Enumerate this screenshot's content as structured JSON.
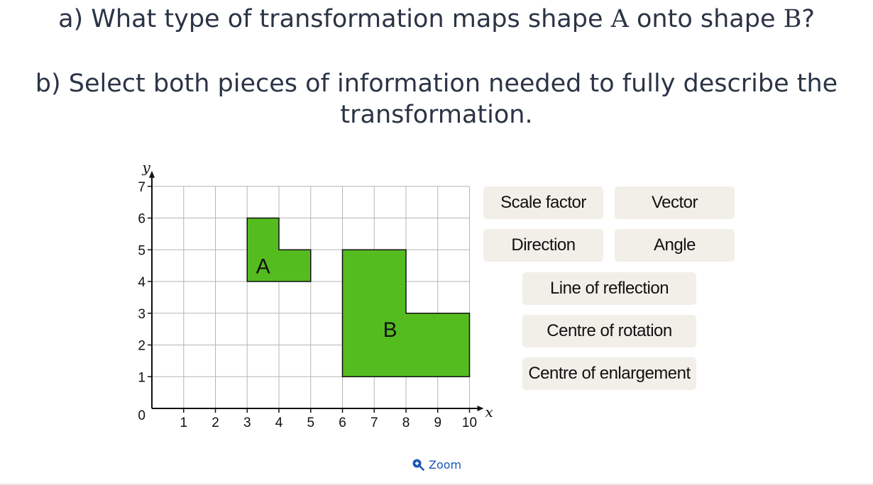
{
  "question_a": {
    "prefix": "a) What type of transformation maps shape ",
    "shape1": "A",
    "middle": " onto shape ",
    "shape2": "B",
    "suffix": "?"
  },
  "question_b": {
    "line1": "b) Select both pieces of information needed to fully describe the",
    "line2": "transformation."
  },
  "graph": {
    "x_axis_label": "x",
    "y_axis_label": "y",
    "origin_label": "0",
    "x_ticks": [
      "1",
      "2",
      "3",
      "4",
      "5",
      "6",
      "7",
      "8",
      "9",
      "10"
    ],
    "y_ticks": [
      "1",
      "2",
      "3",
      "4",
      "5",
      "6",
      "7"
    ],
    "grid_color": "#b5b5b5",
    "shape_fill": "#55bc1f",
    "shape_a": {
      "label": "A",
      "vertices": [
        [
          3,
          4
        ],
        [
          3,
          6
        ],
        [
          4,
          6
        ],
        [
          4,
          5
        ],
        [
          5,
          5
        ],
        [
          5,
          4
        ]
      ],
      "label_pos": [
        3.5,
        4.5
      ]
    },
    "shape_b": {
      "label": "B",
      "vertices": [
        [
          6,
          1
        ],
        [
          6,
          5
        ],
        [
          8,
          5
        ],
        [
          8,
          3
        ],
        [
          10,
          3
        ],
        [
          10,
          1
        ]
      ],
      "label_pos": [
        7.5,
        2.5
      ]
    }
  },
  "options": {
    "scale_factor": "Scale factor",
    "vector": "Vector",
    "direction": "Direction",
    "angle": "Angle",
    "line_of_reflection": "Line of reflection",
    "centre_of_rotation": "Centre of rotation",
    "centre_of_enlargement": "Centre of enlargement"
  },
  "zoom": {
    "label": "Zoom",
    "icon": "zoom-in-icon",
    "color": "#1a56b8"
  }
}
